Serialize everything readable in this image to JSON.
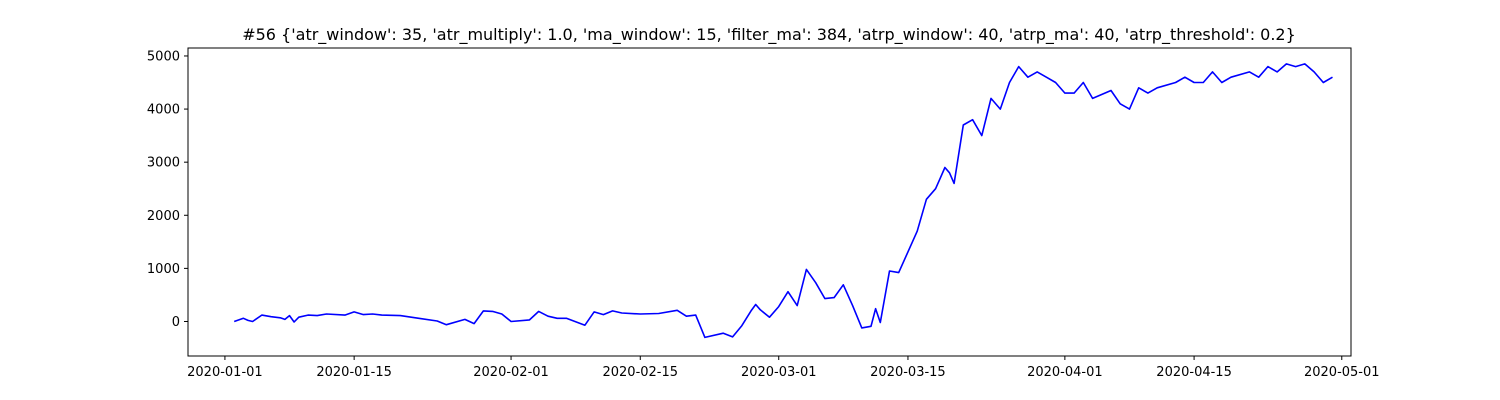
{
  "chart_data": {
    "type": "line",
    "title": "#56 {'atr_window': 35, 'atr_multiply': 1.0, 'ma_window': 15, 'filter_ma': 384, 'atrp_window': 40, 'atrp_ma': 40, 'atrp_threshold': 0.2}",
    "xlabel": "",
    "ylabel": "",
    "xlim": [
      "2019-12-28",
      "2020-05-02"
    ],
    "ylim": [
      -650,
      5150
    ],
    "grid": false,
    "line_color": "#0000ff",
    "x_ticks": [
      "2020-01-01",
      "2020-01-15",
      "2020-02-01",
      "2020-02-15",
      "2020-03-01",
      "2020-03-15",
      "2020-04-01",
      "2020-04-15",
      "2020-05-01"
    ],
    "y_ticks": [
      0,
      1000,
      2000,
      3000,
      4000,
      5000
    ],
    "series": [
      {
        "x": [
          "2020-01-02",
          "2020-01-03",
          "2020-01-03T12:00",
          "2020-01-04",
          "2020-01-05",
          "2020-01-06",
          "2020-01-07",
          "2020-01-07T12:00",
          "2020-01-08",
          "2020-01-08T12:00",
          "2020-01-09",
          "2020-01-10",
          "2020-01-11",
          "2020-01-12",
          "2020-01-14",
          "2020-01-15",
          "2020-01-16",
          "2020-01-17",
          "2020-01-18",
          "2020-01-20",
          "2020-01-22",
          "2020-01-24",
          "2020-01-25",
          "2020-01-27",
          "2020-01-28",
          "2020-01-29",
          "2020-01-30",
          "2020-01-31",
          "2020-02-01",
          "2020-02-03",
          "2020-02-04",
          "2020-02-05",
          "2020-02-06",
          "2020-02-07",
          "2020-02-09",
          "2020-02-10",
          "2020-02-11",
          "2020-02-12",
          "2020-02-13",
          "2020-02-15",
          "2020-02-17",
          "2020-02-19",
          "2020-02-20",
          "2020-02-21",
          "2020-02-22",
          "2020-02-24",
          "2020-02-25",
          "2020-02-26",
          "2020-02-27",
          "2020-02-27T12:00",
          "2020-02-28",
          "2020-02-29",
          "2020-03-01",
          "2020-03-02",
          "2020-03-03",
          "2020-03-04",
          "2020-03-05",
          "2020-03-06",
          "2020-03-07",
          "2020-03-08",
          "2020-03-09",
          "2020-03-10",
          "2020-03-11",
          "2020-03-11T12:00",
          "2020-03-12",
          "2020-03-13",
          "2020-03-14",
          "2020-03-16",
          "2020-03-17",
          "2020-03-18",
          "2020-03-18T12:00",
          "2020-03-19",
          "2020-03-19T12:00",
          "2020-03-20",
          "2020-03-21",
          "2020-03-22",
          "2020-03-23",
          "2020-03-24",
          "2020-03-25",
          "2020-03-26",
          "2020-03-27",
          "2020-03-28",
          "2020-03-29",
          "2020-03-30",
          "2020-03-31",
          "2020-04-01",
          "2020-04-02",
          "2020-04-03",
          "2020-04-04",
          "2020-04-06",
          "2020-04-07",
          "2020-04-08",
          "2020-04-09",
          "2020-04-10",
          "2020-04-11",
          "2020-04-13",
          "2020-04-14",
          "2020-04-15",
          "2020-04-16",
          "2020-04-17",
          "2020-04-18",
          "2020-04-19",
          "2020-04-21",
          "2020-04-22",
          "2020-04-23",
          "2020-04-24",
          "2020-04-25",
          "2020-04-26",
          "2020-04-27",
          "2020-04-28",
          "2020-04-29",
          "2020-04-30"
        ],
        "values": [
          0,
          60,
          20,
          0,
          120,
          90,
          70,
          40,
          110,
          -10,
          80,
          120,
          110,
          140,
          120,
          180,
          130,
          140,
          120,
          110,
          60,
          10,
          -60,
          40,
          -40,
          200,
          190,
          140,
          0,
          30,
          190,
          100,
          60,
          60,
          -70,
          180,
          130,
          200,
          160,
          140,
          150,
          210,
          100,
          120,
          -300,
          -220,
          -290,
          -80,
          200,
          320,
          220,
          80,
          280,
          560,
          300,
          980,
          730,
          430,
          450,
          690,
          300,
          -120,
          -90,
          240,
          -20,
          950,
          920,
          1700,
          2300,
          2500,
          2700,
          2900,
          2800,
          2600,
          3700,
          3800,
          3500,
          4200,
          4000,
          4500,
          4800,
          4600,
          4700,
          4600,
          4500,
          4300,
          4300,
          4500,
          4200,
          4350,
          4100,
          4000,
          4400,
          4300,
          4400,
          4500,
          4600,
          4500,
          4500,
          4700,
          4500,
          4600,
          4700,
          4600,
          4800,
          4700,
          4850,
          4800,
          4850,
          4700,
          4500,
          4600
        ]
      }
    ]
  }
}
